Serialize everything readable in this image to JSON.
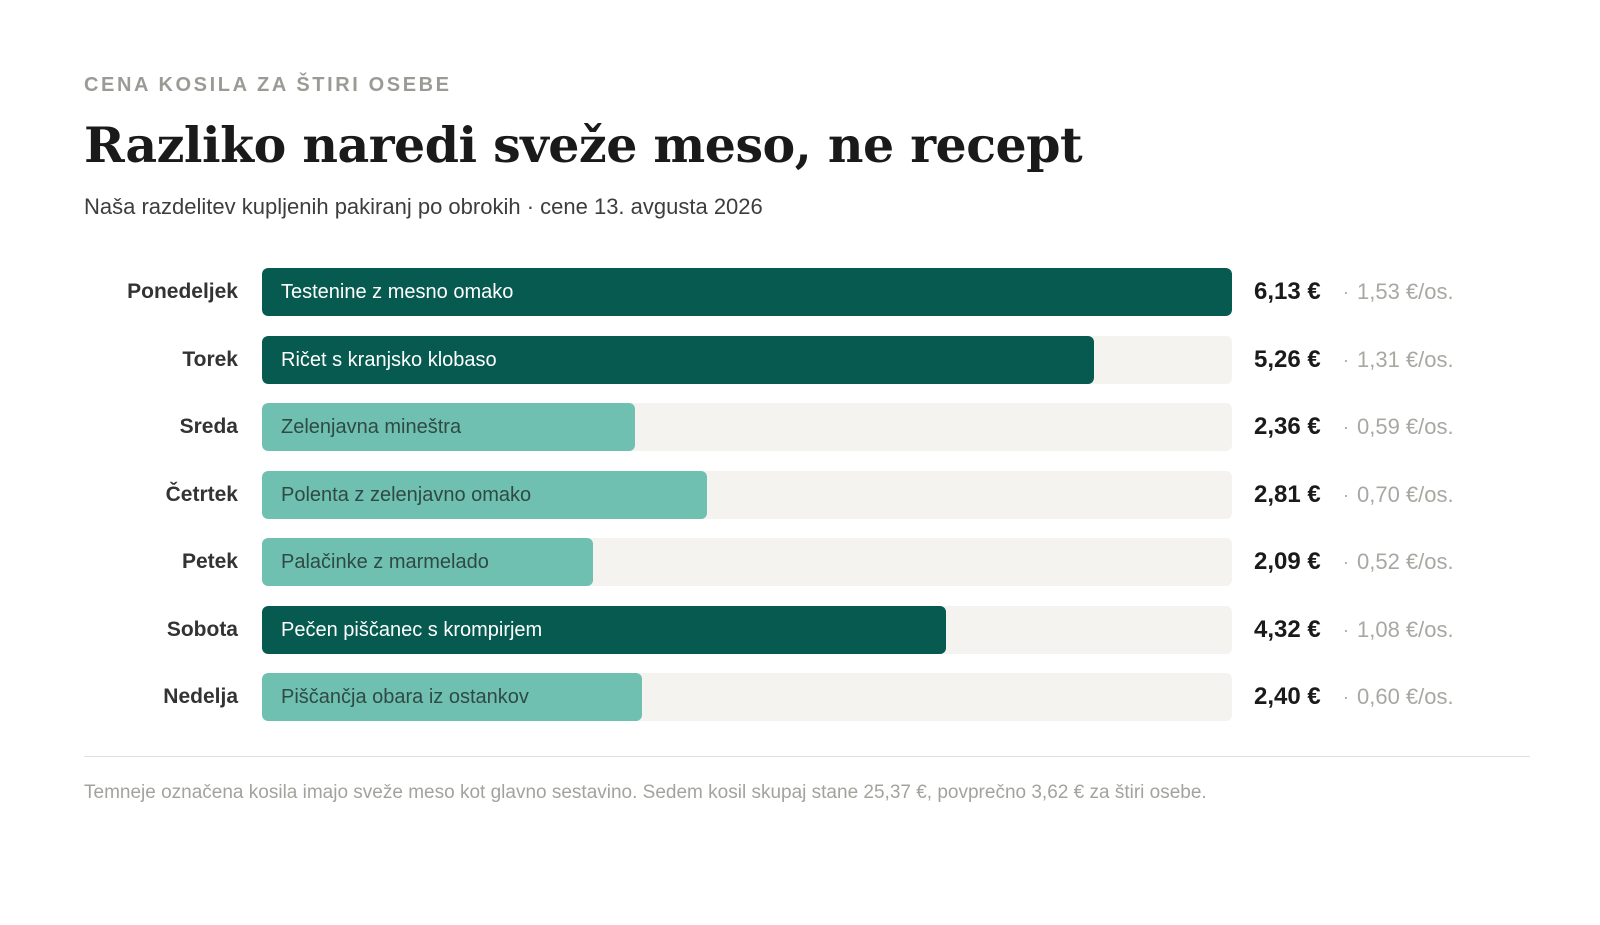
{
  "header": {
    "kicker": "CENA KOSILA ZA ŠTIRI OSEBE",
    "title": "Razliko naredi sveže meso, ne recept",
    "subtitle": "Naša razdelitev kupljenih pakiranj po obrokih · cene 13. avgusta 2026"
  },
  "colors": {
    "fresh_meat": "#065a4f",
    "other": "#6fc0b1",
    "track": "#f4f3ef",
    "text_on_dark": "#ffffff",
    "text_on_light": "#2f4a44"
  },
  "chart_data": {
    "type": "bar",
    "orientation": "horizontal",
    "value_max": 6.13,
    "categories": [
      "Ponedeljek",
      "Torek",
      "Sreda",
      "Četrtek",
      "Petek",
      "Sobota",
      "Nedelja"
    ],
    "meals": [
      "Testenine z mesno omako",
      "Ričet s kranjsko klobaso",
      "Zelenjavna mineštra",
      "Polenta z zelenjavno omako",
      "Palačinke z marmelado",
      "Pečen piščanec s krompirjem",
      "Piščančja obara iz ostankov"
    ],
    "values": [
      6.13,
      5.26,
      2.36,
      2.81,
      2.09,
      4.32,
      2.4
    ],
    "value_labels": [
      "6,13 €",
      "5,26 €",
      "2,36 €",
      "2,81 €",
      "2,09 €",
      "4,32 €",
      "2,40 €"
    ],
    "per_person_labels": [
      "1,53 €/os.",
      "1,31 €/os.",
      "0,59 €/os.",
      "0,70 €/os.",
      "0,52 €/os.",
      "1,08 €/os.",
      "0,60 €/os."
    ],
    "fresh_meat": [
      true,
      true,
      false,
      false,
      false,
      true,
      false
    ],
    "separator": "·"
  },
  "footer": {
    "note": "Temneje označena kosila imajo sveže meso kot glavno sestavino. Sedem kosil skupaj stane 25,37 €, povprečno 3,62 € za štiri osebe."
  }
}
